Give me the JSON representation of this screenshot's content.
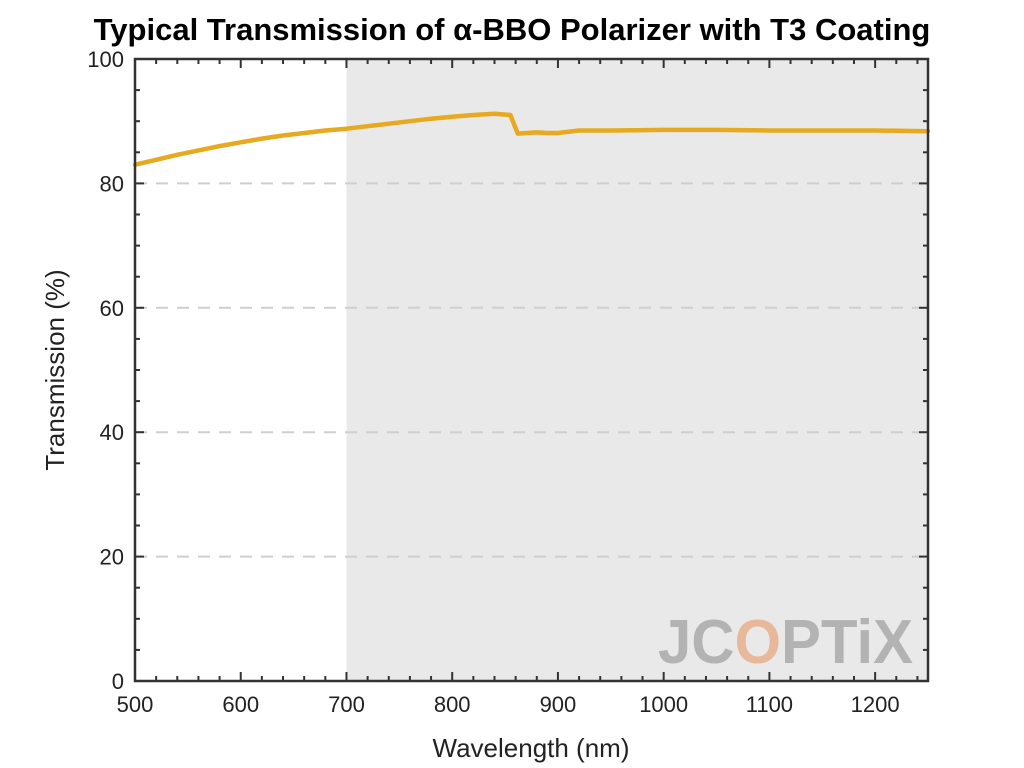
{
  "chart_data": {
    "type": "line",
    "title": "Typical Transmission of α-BBO Polarizer with T3 Coating",
    "xlabel": "Wavelength (nm)",
    "ylabel": "Transmission (%)",
    "xlim": [
      500,
      1250
    ],
    "ylim": [
      0,
      100
    ],
    "xticks": [
      500,
      600,
      700,
      800,
      900,
      1000,
      1100,
      1200
    ],
    "yticks": [
      0,
      20,
      40,
      60,
      80,
      100
    ],
    "grid": "dashed horizontal lines at y ticks",
    "shaded_region": {
      "x_start": 700,
      "x_end": 1250,
      "color": "#e9e9e9"
    },
    "series": [
      {
        "color": "#e6a91f",
        "x": [
          500,
          520,
          540,
          560,
          580,
          600,
          620,
          640,
          660,
          680,
          700,
          720,
          740,
          760,
          780,
          800,
          820,
          840,
          855,
          862,
          870,
          880,
          890,
          900,
          920,
          950,
          1000,
          1050,
          1100,
          1150,
          1200,
          1250
        ],
        "y": [
          83.0,
          83.8,
          84.6,
          85.3,
          86.0,
          86.6,
          87.2,
          87.7,
          88.1,
          88.5,
          88.8,
          89.2,
          89.6,
          90.0,
          90.4,
          90.7,
          91.0,
          91.2,
          91.0,
          88.0,
          88.1,
          88.2,
          88.1,
          88.1,
          88.5,
          88.5,
          88.6,
          88.6,
          88.5,
          88.5,
          88.5,
          88.4
        ]
      }
    ]
  },
  "watermark": {
    "text": "JCOPTiX",
    "color": "#b3b3b3",
    "accent": "#e8b89a"
  }
}
